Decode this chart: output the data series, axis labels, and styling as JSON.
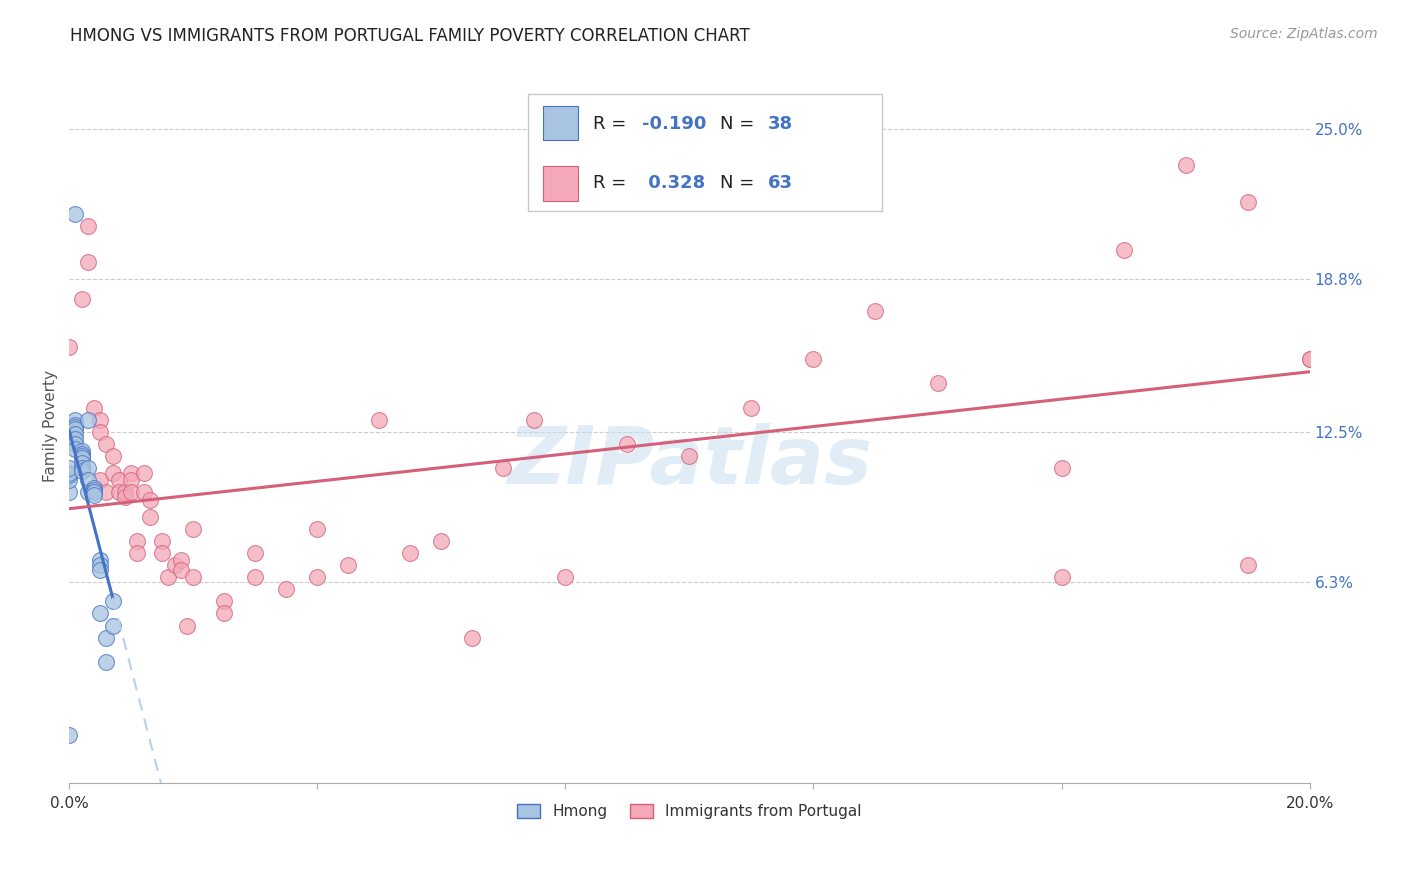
{
  "title": "HMONG VS IMMIGRANTS FROM PORTUGAL FAMILY POVERTY CORRELATION CHART",
  "source": "Source: ZipAtlas.com",
  "ylabel": "Family Poverty",
  "y_tick_labels_right": [
    "25.0%",
    "18.8%",
    "12.5%",
    "6.3%"
  ],
  "y_tick_values_right": [
    0.25,
    0.188,
    0.125,
    0.063
  ],
  "xlim": [
    0.0,
    0.2
  ],
  "ylim": [
    -0.02,
    0.275
  ],
  "legend_label1": "Hmong",
  "legend_label2": "Immigrants from Portugal",
  "R1": "-0.190",
  "N1": "38",
  "R2": "0.328",
  "N2": "63",
  "color_blue": "#a8c4e0",
  "color_pink": "#f4a8b8",
  "line_blue": "#4472c4",
  "line_pink": "#d4607a",
  "line_blue_dash": "#b8d0ec",
  "watermark": "ZIPatlas",
  "hmong_x": [
    0.0,
    0.0,
    0.0,
    0.0,
    0.0,
    0.001,
    0.001,
    0.001,
    0.001,
    0.001,
    0.001,
    0.001,
    0.001,
    0.001,
    0.002,
    0.002,
    0.002,
    0.002,
    0.002,
    0.002,
    0.002,
    0.003,
    0.003,
    0.003,
    0.003,
    0.004,
    0.004,
    0.004,
    0.004,
    0.005,
    0.005,
    0.005,
    0.005,
    0.006,
    0.006,
    0.007,
    0.007,
    0.0
  ],
  "hmong_y": [
    0.1,
    0.105,
    0.107,
    0.108,
    0.11,
    0.215,
    0.13,
    0.128,
    0.127,
    0.126,
    0.124,
    0.122,
    0.12,
    0.118,
    0.117,
    0.116,
    0.115,
    0.114,
    0.112,
    0.11,
    0.109,
    0.13,
    0.11,
    0.105,
    0.1,
    0.102,
    0.101,
    0.1,
    0.099,
    0.072,
    0.07,
    0.068,
    0.05,
    0.04,
    0.03,
    0.055,
    0.045,
    0.0
  ],
  "portugal_x": [
    0.0,
    0.002,
    0.003,
    0.003,
    0.004,
    0.005,
    0.005,
    0.005,
    0.006,
    0.006,
    0.007,
    0.007,
    0.008,
    0.008,
    0.009,
    0.009,
    0.01,
    0.01,
    0.01,
    0.011,
    0.011,
    0.012,
    0.012,
    0.013,
    0.013,
    0.015,
    0.015,
    0.016,
    0.017,
    0.018,
    0.018,
    0.019,
    0.02,
    0.02,
    0.025,
    0.025,
    0.03,
    0.03,
    0.035,
    0.04,
    0.04,
    0.045,
    0.05,
    0.055,
    0.06,
    0.065,
    0.07,
    0.075,
    0.08,
    0.09,
    0.1,
    0.11,
    0.12,
    0.13,
    0.14,
    0.16,
    0.17,
    0.18,
    0.19,
    0.19,
    0.2,
    0.2,
    0.16
  ],
  "portugal_y": [
    0.16,
    0.18,
    0.21,
    0.195,
    0.135,
    0.13,
    0.125,
    0.105,
    0.12,
    0.1,
    0.115,
    0.108,
    0.105,
    0.1,
    0.1,
    0.098,
    0.108,
    0.105,
    0.1,
    0.08,
    0.075,
    0.108,
    0.1,
    0.097,
    0.09,
    0.08,
    0.075,
    0.065,
    0.07,
    0.072,
    0.068,
    0.045,
    0.085,
    0.065,
    0.055,
    0.05,
    0.075,
    0.065,
    0.06,
    0.085,
    0.065,
    0.07,
    0.13,
    0.075,
    0.08,
    0.04,
    0.11,
    0.13,
    0.065,
    0.12,
    0.115,
    0.135,
    0.155,
    0.175,
    0.145,
    0.11,
    0.2,
    0.235,
    0.22,
    0.07,
    0.155,
    0.155,
    0.065
  ]
}
